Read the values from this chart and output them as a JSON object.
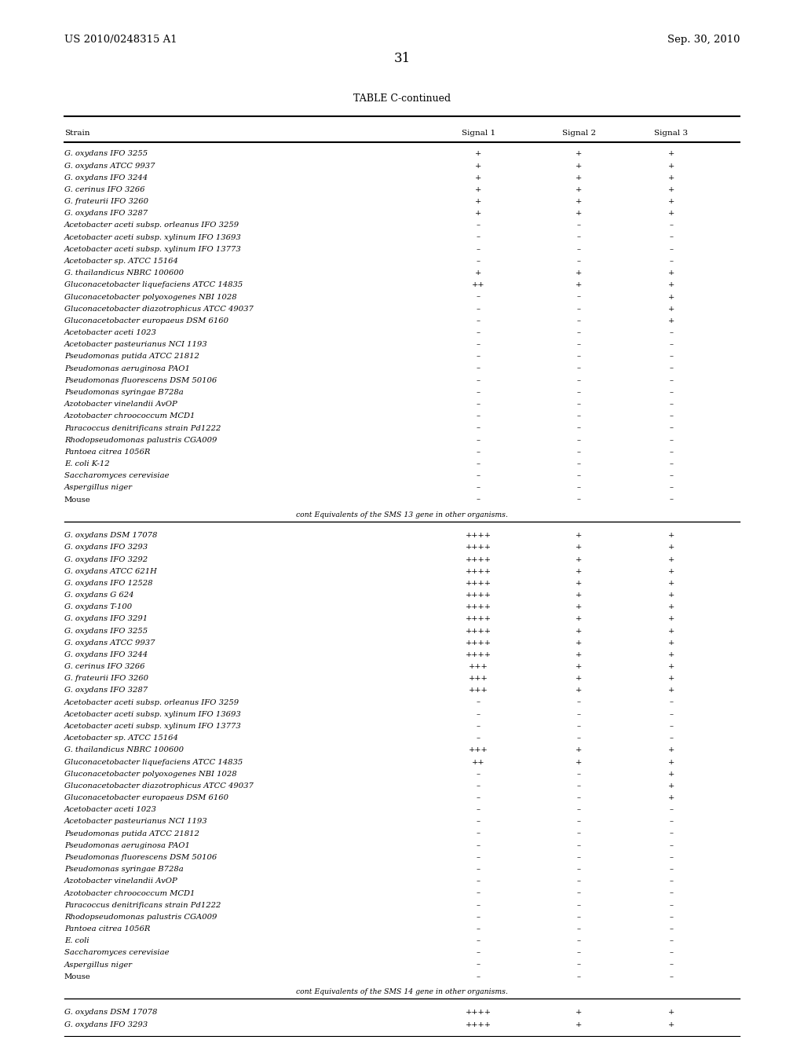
{
  "header_left": "US 2010/0248315 A1",
  "header_right": "Sep. 30, 2010",
  "page_number": "31",
  "table_title": "TABLE C-continued",
  "col_headers": [
    "Strain",
    "Signal 1",
    "Signal 2",
    "Signal 3"
  ],
  "section1_rows": [
    [
      "G. oxydans IFO 3255",
      "+",
      "+",
      "+"
    ],
    [
      "G. oxydans ATCC 9937",
      "+",
      "+",
      "+"
    ],
    [
      "G. oxydans IFO 3244",
      "+",
      "+",
      "+"
    ],
    [
      "G. cerinus IFO 3266",
      "+",
      "+",
      "+"
    ],
    [
      "G. frateurii IFO 3260",
      "+",
      "+",
      "+"
    ],
    [
      "G. oxydans IFO 3287",
      "+",
      "+",
      "+"
    ],
    [
      "Acetobacter aceti subsp. orleanus IFO 3259",
      "–",
      "–",
      "–"
    ],
    [
      "Acetobacter aceti subsp. xylinum IFO 13693",
      "–",
      "–",
      "–"
    ],
    [
      "Acetobacter aceti subsp. xylinum IFO 13773",
      "–",
      "–",
      "–"
    ],
    [
      "Acetobacter sp. ATCC 15164",
      "–",
      "–",
      "–"
    ],
    [
      "G. thailandicus NBRC 100600",
      "+",
      "+",
      "+"
    ],
    [
      "Gluconacetobacter liquefaciens ATCC 14835",
      "++",
      "+",
      "+"
    ],
    [
      "Gluconacetobacter polyoxogenes NBI 1028",
      "–",
      "–",
      "+"
    ],
    [
      "Gluconacetobacter diazotrophicus ATCC 49037",
      "–",
      "–",
      "+"
    ],
    [
      "Gluconacetobacter europaeus DSM 6160",
      "–",
      "–",
      "+"
    ],
    [
      "Acetobacter aceti 1023",
      "–",
      "–",
      "–"
    ],
    [
      "Acetobacter pasteurianus NCI 1193",
      "–",
      "–",
      "–"
    ],
    [
      "Pseudomonas putida ATCC 21812",
      "–",
      "–",
      "–"
    ],
    [
      "Pseudomonas aeruginosa PAO1",
      "–",
      "–",
      "–"
    ],
    [
      "Pseudomonas fluorescens DSM 50106",
      "–",
      "–",
      "–"
    ],
    [
      "Pseudomonas syringae B728a",
      "–",
      "–",
      "–"
    ],
    [
      "Azotobacter vinelandii AvOP",
      "–",
      "–",
      "–"
    ],
    [
      "Azotobacter chroococcum MCD1",
      "–",
      "–",
      "–"
    ],
    [
      "Paracoccus denitrificans strain Pd1222",
      "–",
      "–",
      "–"
    ],
    [
      "Rhodopseudomonas palustris CGA009",
      "–",
      "–",
      "–"
    ],
    [
      "Pantoea citrea 1056R",
      "–",
      "–",
      "–"
    ],
    [
      "E. coli K-12",
      "–",
      "–",
      "–"
    ],
    [
      "Saccharomyces cerevisiae",
      "–",
      "–",
      "–"
    ],
    [
      "Aspergillus niger",
      "–",
      "–",
      "–"
    ],
    [
      "Mouse",
      "–",
      "–",
      "–"
    ]
  ],
  "section1_note": "cont Equivalents of the SMS 13 gene in other organisms.",
  "section2_rows": [
    [
      "G. oxydans DSM 17078",
      "++++",
      "+",
      "+"
    ],
    [
      "G. oxydans IFO 3293",
      "++++",
      "+",
      "+"
    ],
    [
      "G. oxydans IFO 3292",
      "++++",
      "+",
      "+"
    ],
    [
      "G. oxydans ATCC 621H",
      "++++",
      "+",
      "+"
    ],
    [
      "G. oxydans IFO 12528",
      "++++",
      "+",
      "+"
    ],
    [
      "G. oxydans G 624",
      "++++",
      "+",
      "+"
    ],
    [
      "G. oxydans T-100",
      "++++",
      "+",
      "+"
    ],
    [
      "G. oxydans IFO 3291",
      "++++",
      "+",
      "+"
    ],
    [
      "G. oxydans IFO 3255",
      "++++",
      "+",
      "+"
    ],
    [
      "G. oxydans ATCC 9937",
      "++++",
      "+",
      "+"
    ],
    [
      "G. oxydans IFO 3244",
      "++++",
      "+",
      "+"
    ],
    [
      "G. cerinus IFO 3266",
      "+++",
      "+",
      "+"
    ],
    [
      "G. frateurii IFO 3260",
      "+++",
      "+",
      "+"
    ],
    [
      "G. oxydans IFO 3287",
      "+++",
      "+",
      "+"
    ],
    [
      "Acetobacter aceti subsp. orleanus IFO 3259",
      "–",
      "–",
      "–"
    ],
    [
      "Acetobacter aceti subsp. xylinum IFO 13693",
      "–",
      "–",
      "–"
    ],
    [
      "Acetobacter aceti subsp. xylinum IFO 13773",
      "–",
      "–",
      "–"
    ],
    [
      "Acetobacter sp. ATCC 15164",
      "–",
      "–",
      "–"
    ],
    [
      "G. thailandicus NBRC 100600",
      "+++",
      "+",
      "+"
    ],
    [
      "Gluconacetobacter liquefaciens ATCC 14835",
      "++",
      "+",
      "+"
    ],
    [
      "Gluconacetobacter polyoxogenes NBI 1028",
      "–",
      "–",
      "+"
    ],
    [
      "Gluconacetobacter diazotrophicus ATCC 49037",
      "–",
      "–",
      "+"
    ],
    [
      "Gluconacetobacter europaeus DSM 6160",
      "–",
      "–",
      "+"
    ],
    [
      "Acetobacter aceti 1023",
      "–",
      "–",
      "–"
    ],
    [
      "Acetobacter pasteurianus NCI 1193",
      "–",
      "–",
      "–"
    ],
    [
      "Pseudomonas putida ATCC 21812",
      "–",
      "–",
      "–"
    ],
    [
      "Pseudomonas aeruginosa PAO1",
      "–",
      "–",
      "–"
    ],
    [
      "Pseudomonas fluorescens DSM 50106",
      "–",
      "–",
      "–"
    ],
    [
      "Pseudomonas syringae B728a",
      "–",
      "–",
      "–"
    ],
    [
      "Azotobacter vinelandii AvOP",
      "–",
      "–",
      "–"
    ],
    [
      "Azotobacter chroococcum MCD1",
      "–",
      "–",
      "–"
    ],
    [
      "Paracoccus denitrificans strain Pd1222",
      "–",
      "–",
      "–"
    ],
    [
      "Rhodopseudomonas palustris CGA009",
      "–",
      "–",
      "–"
    ],
    [
      "Pantoea citrea 1056R",
      "–",
      "–",
      "–"
    ],
    [
      "E. coli",
      "–",
      "–",
      "–"
    ],
    [
      "Saccharomyces cerevisiae",
      "–",
      "–",
      "–"
    ],
    [
      "Aspergillus niger",
      "–",
      "–",
      "–"
    ],
    [
      "Mouse",
      "–",
      "–",
      "–"
    ]
  ],
  "section2_note": "cont Equivalents of the SMS 14 gene in other organisms.",
  "section3_rows": [
    [
      "G. oxydans DSM 17078",
      "++++",
      "+",
      "+"
    ],
    [
      "G. oxydans IFO 3293",
      "++++",
      "+",
      "+"
    ]
  ],
  "italic_strains": [
    "Acetobacter aceti subsp. orleanus",
    "Acetobacter aceti subsp. xylinum",
    "Acetobacter aceti subsp. xylinum",
    "Acetobacter sp.",
    "G. thailandicus",
    "Gluconacetobacter liquefaciens",
    "Gluconacetobacter polyoxogenes",
    "Gluconacetobacter diazotrophicus",
    "Gluconacetobacter europaeus",
    "Acetobacter aceti",
    "Acetobacter pasteurianus",
    "Pseudomonas putida",
    "Pseudomonas aeruginosa",
    "Pseudomonas fluorescens",
    "Pseudomonas syringae",
    "Azotobacter vinelandii",
    "Azotobacter chroococcum",
    "Paracoccus denitrificans",
    "Rhodopseudomonas palustris",
    "Pantoea citrea",
    "E. coli",
    "Saccharomyces cerevisiae",
    "Aspergillus niger"
  ],
  "bg_color": "#ffffff",
  "text_color": "#000000",
  "font_size": 7.2,
  "header_font_size": 9.5,
  "title_font_size": 9.0
}
